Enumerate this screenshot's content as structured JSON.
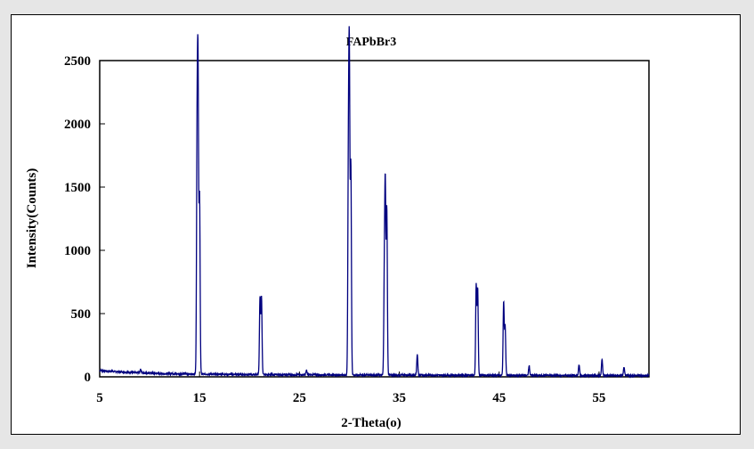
{
  "chart_data": {
    "type": "line",
    "title": "FAPbBr3",
    "xlabel": "2-Theta(o)",
    "ylabel": "Intensity(Counts)",
    "xlim": [
      5,
      60
    ],
    "ylim": [
      0,
      2500
    ],
    "xticks": [
      5,
      15,
      25,
      35,
      45,
      55
    ],
    "yticks": [
      0,
      500,
      1000,
      1500,
      2000,
      2500
    ],
    "grid": false,
    "line_color": "#00007f",
    "baseline": [
      [
        5,
        50
      ],
      [
        7,
        40
      ],
      [
        9,
        32
      ],
      [
        12,
        24
      ],
      [
        15,
        22
      ],
      [
        20,
        18
      ],
      [
        30,
        15
      ],
      [
        45,
        12
      ],
      [
        60,
        10
      ]
    ],
    "peaks": [
      {
        "x": 9.1,
        "y": 60
      },
      {
        "x": 12.2,
        "y": 30
      },
      {
        "x": 14.75,
        "y": 1780
      },
      {
        "x": 14.85,
        "y": 2220
      },
      {
        "x": 15.0,
        "y": 1420
      },
      {
        "x": 21.05,
        "y": 620
      },
      {
        "x": 21.2,
        "y": 630
      },
      {
        "x": 25.7,
        "y": 50
      },
      {
        "x": 29.9,
        "y": 1570
      },
      {
        "x": 30.0,
        "y": 2370
      },
      {
        "x": 30.15,
        "y": 1660
      },
      {
        "x": 33.5,
        "y": 730
      },
      {
        "x": 33.6,
        "y": 1430
      },
      {
        "x": 33.75,
        "y": 1320
      },
      {
        "x": 36.8,
        "y": 175
      },
      {
        "x": 42.7,
        "y": 720
      },
      {
        "x": 42.85,
        "y": 690
      },
      {
        "x": 45.45,
        "y": 590
      },
      {
        "x": 45.6,
        "y": 395
      },
      {
        "x": 48.0,
        "y": 90
      },
      {
        "x": 53.0,
        "y": 95
      },
      {
        "x": 55.3,
        "y": 140
      },
      {
        "x": 57.5,
        "y": 75
      }
    ]
  }
}
